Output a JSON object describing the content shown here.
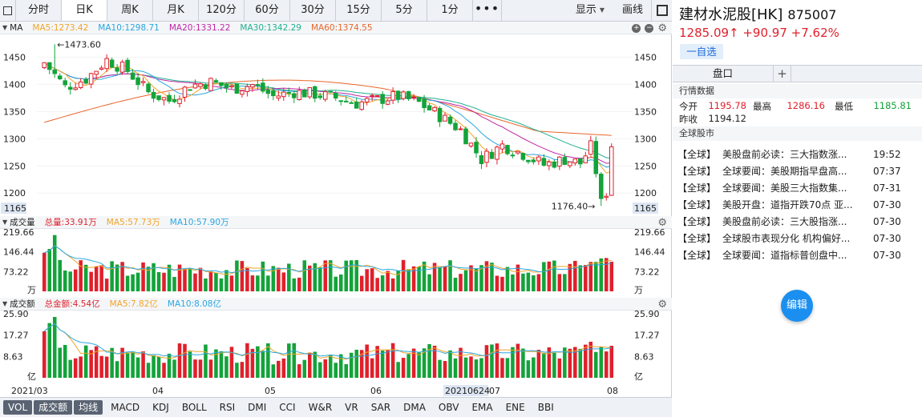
{
  "toolbar": {
    "tabs": [
      "分时",
      "日K",
      "周K",
      "月K",
      "120分",
      "60分",
      "30分",
      "15分",
      "5分",
      "1分"
    ],
    "active_tab": "日K",
    "more": "•••",
    "display_label": "显示",
    "draw_label": "画线"
  },
  "main_pane": {
    "label": "MA",
    "ma5": "MA5:1273.42",
    "ma10": "MA10:1298.71",
    "ma20": "MA20:1331.22",
    "ma30": "MA30:1342.29",
    "ma60": "MA60:1374.55",
    "high_marker": "←1473.60",
    "low_marker": "1176.40→",
    "ylabels": [
      "1450",
      "1400",
      "1350",
      "1300",
      "1250",
      "1200"
    ],
    "current_price_tag": "1165"
  },
  "vol_pane": {
    "label": "成交量",
    "total": "总量:33.91万",
    "ma5": "MA5:57.73万",
    "ma10": "MA10:57.90万",
    "ylabels": [
      "219.66",
      "146.44",
      "73.22"
    ],
    "unit": "万"
  },
  "amount_pane": {
    "label": "成交额",
    "total": "总金额:4.54亿",
    "ma5": "MA5:7.82亿",
    "ma10": "MA10:8.08亿",
    "ylabels": [
      "25.90",
      "17.27",
      "8.63"
    ],
    "unit": "亿"
  },
  "xaxis": {
    "labels": [
      "2021/03",
      "04",
      "05",
      "06",
      "07",
      "08"
    ],
    "cursor_date": "20210624"
  },
  "indicator_tabs": [
    "VOL",
    "成交额",
    "均线",
    "MACD",
    "KDJ",
    "BOLL",
    "RSI",
    "DMI",
    "CCI",
    "W&R",
    "VR",
    "SAR",
    "DMA",
    "OBV",
    "EMA",
    "ENE",
    "BBI"
  ],
  "selected_indicators": [
    "VOL",
    "成交额",
    "均线"
  ],
  "stock": {
    "name": "建材水泥股[HK]",
    "code": "875007",
    "price_line": "1285.09↑ +90.97 +7.62%",
    "watch_label": "一自选"
  },
  "right_tabs": {
    "active": "盘口",
    "add": "+"
  },
  "quote_section": {
    "title": "行情数据",
    "open_label": "今开",
    "open": "1195.78",
    "high_label": "最高",
    "high": "1286.16",
    "low_label": "最低",
    "low": "1185.81",
    "prev_label": "昨收",
    "prev": "1194.12"
  },
  "news_section": {
    "title": "全球股市",
    "items": [
      {
        "tag": "【全球】",
        "title": "美股盘前必读：三大指数涨...",
        "time": "19:52"
      },
      {
        "tag": "【全球】",
        "title": "全球要闻：美股期指早盘高...",
        "time": "07:37"
      },
      {
        "tag": "【全球】",
        "title": "全球要闻：美股三大指数集...",
        "time": "07-31"
      },
      {
        "tag": "【全球】",
        "title": "美股开盘：道指开跌70点 亚...",
        "time": "07-30"
      },
      {
        "tag": "【全球】",
        "title": "美股盘前必读：三大股指涨...",
        "time": "07-30"
      },
      {
        "tag": "【全球】",
        "title": "全球股市表现分化 机构偏好...",
        "time": "07-30"
      },
      {
        "tag": "【全球】",
        "title": "全球要闻：道指标普创盘中...",
        "time": "07-30"
      }
    ]
  },
  "edit_button": "编辑",
  "colors": {
    "up": "#e0202b",
    "down": "#13a33a",
    "ma5": "#f0a52a",
    "ma10": "#2aa7e0",
    "ma20": "#c026a6",
    "ma30": "#20b090",
    "ma60": "#e8662a",
    "accent": "#1a8ff0"
  },
  "chart_data": {
    "type": "candlestick",
    "title": "",
    "ylim": [
      1165,
      1480
    ],
    "high": 1473.6,
    "low": 1176.4,
    "last": 1285.09,
    "ma_last": {
      "MA5": 1273.42,
      "MA10": 1298.71,
      "MA20": 1331.22,
      "MA30": 1342.29,
      "MA60": 1374.55
    },
    "volume_ylim": [
      0,
      219.66
    ],
    "amount_ylim": [
      0,
      25.9
    ]
  }
}
